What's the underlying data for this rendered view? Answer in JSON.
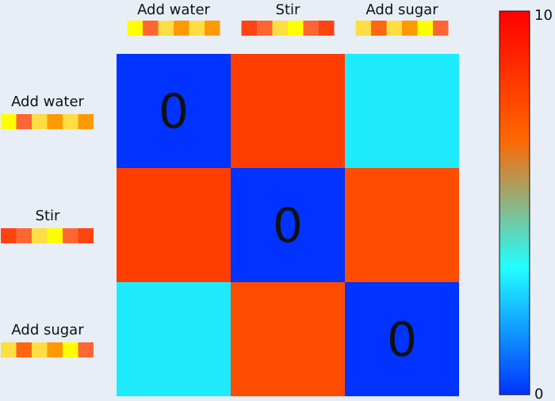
{
  "chart_data": {
    "type": "heatmap",
    "rows": [
      "Add water",
      "Stir",
      "Add sugar"
    ],
    "columns": [
      "Add water",
      "Stir",
      "Add sugar"
    ],
    "values": [
      [
        0,
        8,
        3
      ],
      [
        8,
        0,
        7.5
      ],
      [
        3,
        7.5,
        0
      ]
    ],
    "cell_labels": [
      [
        "0",
        "",
        ""
      ],
      [
        "",
        "0",
        ""
      ],
      [
        "",
        "",
        "0"
      ]
    ],
    "colorbar": {
      "min": 0,
      "max": 10,
      "min_label": "0",
      "max_label": "10"
    },
    "colorscale": [
      "#0033ff",
      "#22ffff",
      "#ff6600",
      "#ff0000"
    ],
    "step_color_bars": {
      "Add water": [
        "#ffff00",
        "#ff6633",
        "#ffdd44",
        "#ff9900",
        "#ffdd44",
        "#ff9900"
      ],
      "Stir": [
        "#ff4411",
        "#ff6633",
        "#ffdd44",
        "#ffff00",
        "#ff6633",
        "#ff4411"
      ],
      "Add sugar": [
        "#ffdd44",
        "#ff6611",
        "#ffdd44",
        "#ff9900",
        "#ffff00",
        "#ff6633"
      ]
    }
  }
}
